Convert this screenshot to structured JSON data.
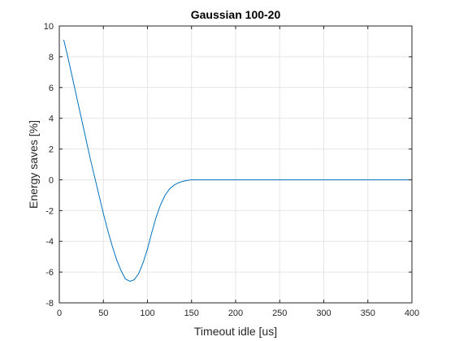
{
  "chart_data": {
    "type": "line",
    "title": "Gaussian 100-20",
    "xlabel": "Timeout idle [us]",
    "ylabel": "Energy saves [%]",
    "xlim": [
      0,
      400
    ],
    "ylim": [
      -8,
      10
    ],
    "xticks": [
      0,
      50,
      100,
      150,
      200,
      250,
      300,
      350,
      400
    ],
    "yticks": [
      -8,
      -6,
      -4,
      -2,
      0,
      2,
      4,
      6,
      8,
      10
    ],
    "grid": true,
    "legend": "none",
    "colors": {
      "line": "#0072bd",
      "grid": "#e6e6e6",
      "axis": "#262626"
    },
    "series": [
      {
        "x": [
          5,
          10,
          15,
          20,
          25,
          30,
          35,
          40,
          45,
          50,
          55,
          60,
          65,
          70,
          75,
          80,
          85,
          90,
          95,
          100,
          105,
          110,
          115,
          120,
          125,
          130,
          135,
          140,
          145,
          150,
          160,
          200,
          250,
          300,
          350,
          400
        ],
        "y": [
          9.1,
          7.9,
          6.6,
          5.3,
          4.0,
          2.7,
          1.4,
          0.2,
          -1.0,
          -2.2,
          -3.3,
          -4.3,
          -5.2,
          -5.9,
          -6.45,
          -6.6,
          -6.5,
          -6.1,
          -5.4,
          -4.5,
          -3.4,
          -2.4,
          -1.6,
          -1.0,
          -0.6,
          -0.35,
          -0.2,
          -0.1,
          -0.04,
          0.0,
          0.0,
          0.0,
          0.0,
          0.0,
          0.0,
          0.0
        ]
      }
    ]
  }
}
